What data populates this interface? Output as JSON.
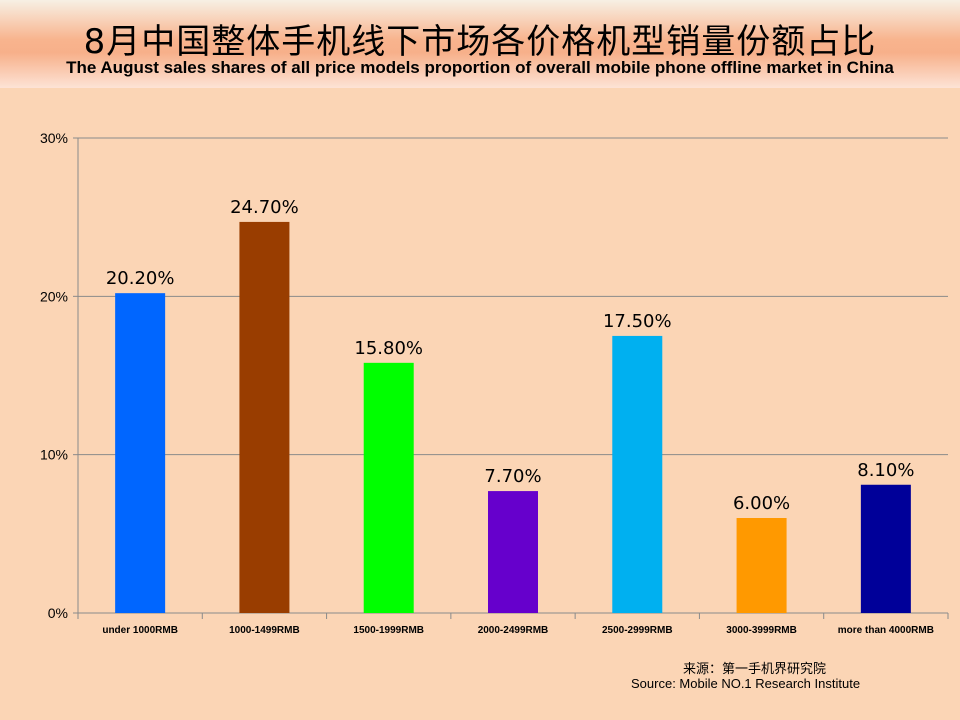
{
  "header": {
    "title_cn": "8月中国整体手机线下市场各价格机型销量份额占比",
    "title_en": "The August sales shares of all price models proportion of overall mobile phone offline market in China"
  },
  "source": {
    "cn": "来源：第一手机界研究院",
    "en": "Source: Mobile NO.1 Research Institute"
  },
  "chart_data": {
    "type": "bar",
    "title": "8月中国整体手机线下市场各价格机型销量份额占比",
    "subtitle": "The August sales shares of all price models proportion of overall mobile phone offline market in China",
    "xlabel": "",
    "ylabel": "",
    "ylim": [
      0,
      30
    ],
    "yticks": [
      "0%",
      "10%",
      "20%",
      "30%"
    ],
    "grid": true,
    "legend": "none",
    "categories": [
      "under 1000RMB",
      "1000-1499RMB",
      "1500-1999RMB",
      "2000-2499RMB",
      "2500-2999RMB",
      "3000-3999RMB",
      "more than 4000RMB"
    ],
    "values": [
      20.2,
      24.7,
      15.8,
      7.7,
      17.5,
      6.0,
      8.1
    ],
    "data_labels": [
      "20.20%",
      "24.70%",
      "15.80%",
      "7.70%",
      "17.50%",
      "6.00%",
      "8.10%"
    ],
    "colors": [
      "#0066ff",
      "#993d00",
      "#00ff00",
      "#6600cc",
      "#00b0f0",
      "#ff9900",
      "#000099"
    ]
  }
}
